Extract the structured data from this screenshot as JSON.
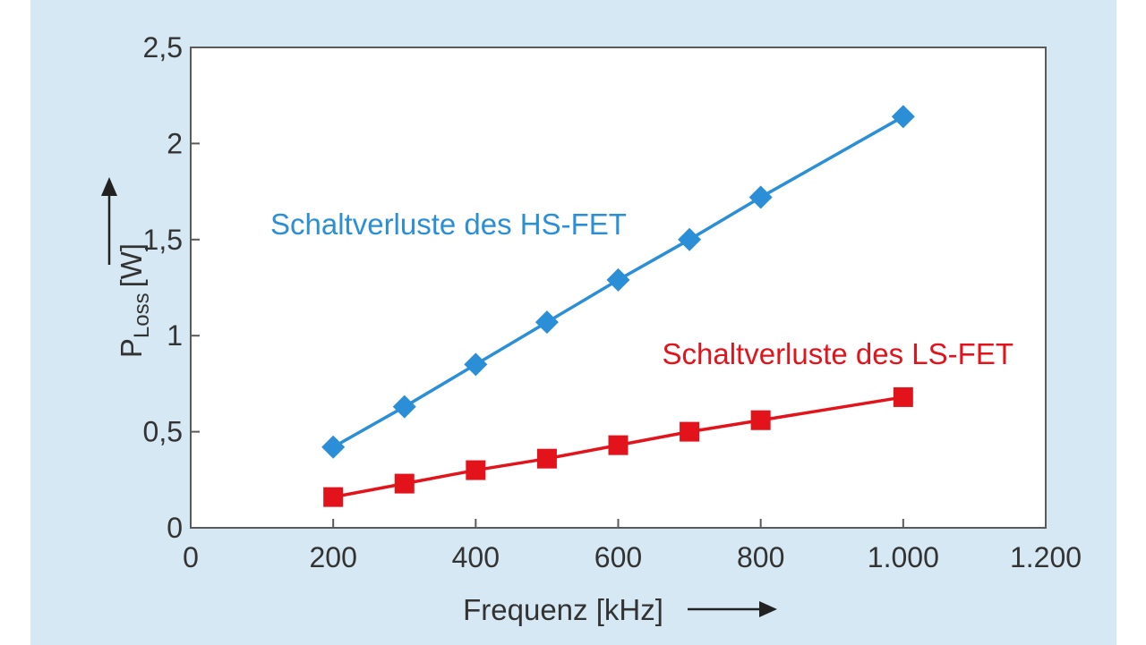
{
  "chart_data": {
    "type": "line",
    "title": "",
    "xlabel": "Frequenz [kHz]",
    "ylabel": {
      "main": "P",
      "sub": "Loss",
      "unit": "[W]"
    },
    "xlim": [
      0,
      1200
    ],
    "ylim": [
      0,
      2.5
    ],
    "x_ticks": [
      0,
      200,
      400,
      600,
      800,
      1000,
      1200
    ],
    "x_tick_labels": [
      "0",
      "200",
      "400",
      "600",
      "800",
      "1.000",
      "1.200"
    ],
    "y_ticks": [
      0,
      0.5,
      1,
      1.5,
      2,
      2.5
    ],
    "y_tick_labels": [
      "0",
      "0,5",
      "1",
      "1,5",
      "2",
      "2,5"
    ],
    "grid": false,
    "series": [
      {
        "name": "Schaltverluste des HS-FET",
        "color": "#2a8fd6",
        "marker": "diamond",
        "x": [
          200,
          300,
          400,
          500,
          600,
          700,
          800,
          1000
        ],
        "y": [
          0.42,
          0.63,
          0.85,
          1.07,
          1.29,
          1.5,
          1.72,
          2.14
        ]
      },
      {
        "name": "Schaltverluste des LS-FET",
        "color": "#e3131b",
        "marker": "square",
        "x": [
          200,
          300,
          400,
          500,
          600,
          700,
          800,
          1000
        ],
        "y": [
          0.16,
          0.23,
          0.3,
          0.36,
          0.43,
          0.5,
          0.56,
          0.68
        ]
      }
    ]
  }
}
